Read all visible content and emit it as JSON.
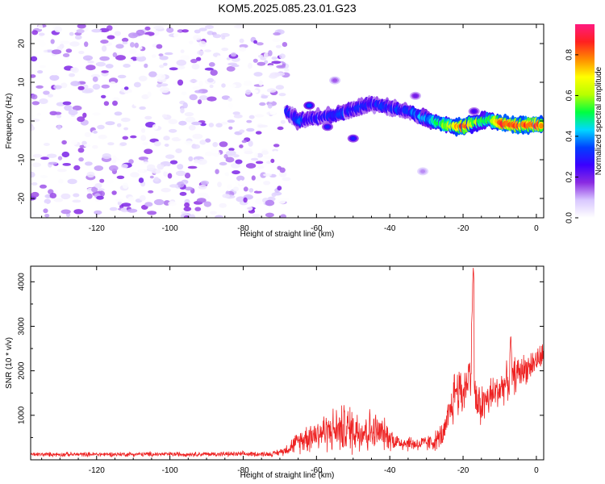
{
  "title": "KOM5.2025.085.23.01.G23",
  "chart_data": [
    {
      "type": "heatmap",
      "xlabel": "Height of straight line (km)",
      "ylabel": "Frequency (Hz)",
      "xlim": [
        -138,
        2
      ],
      "ylim": [
        -25,
        25
      ],
      "xticks": [
        -120,
        -100,
        -80,
        -60,
        -40,
        -20,
        0
      ],
      "yticks": [
        -20,
        -10,
        0,
        10,
        20
      ],
      "colorbar": {
        "label": "Normalized spectral amplitude",
        "range": [
          0,
          0.95
        ],
        "ticks": [
          0.0,
          0.2,
          0.4,
          0.6,
          0.8
        ],
        "colormap": [
          "#ffffff",
          "#d9c8ff",
          "#8a2be2",
          "#3b00ff",
          "#0040ff",
          "#00d8ff",
          "#00ff40",
          "#b8ff00",
          "#ffff00",
          "#ff8c00",
          "#ff2020",
          "#ff1a80"
        ]
      },
      "noise_region": {
        "x_range": [
          -138,
          -68
        ],
        "freq_range": [
          -25,
          25
        ],
        "amplitude_range": [
          0.0,
          0.2
        ]
      },
      "signal_ridge": {
        "freq_halfwidth_hz": 1.3,
        "points": [
          {
            "x": -68,
            "f": 2.5,
            "a": 0.25
          },
          {
            "x": -65,
            "f": 0.0,
            "a": 0.32
          },
          {
            "x": -60,
            "f": 0.8,
            "a": 0.3
          },
          {
            "x": -55,
            "f": 1.5,
            "a": 0.28
          },
          {
            "x": -50,
            "f": 3.0,
            "a": 0.32
          },
          {
            "x": -45,
            "f": 4.5,
            "a": 0.28
          },
          {
            "x": -40,
            "f": 3.5,
            "a": 0.3
          },
          {
            "x": -35,
            "f": 2.5,
            "a": 0.32
          },
          {
            "x": -30,
            "f": 0.5,
            "a": 0.4
          },
          {
            "x": -25,
            "f": -1.0,
            "a": 0.55
          },
          {
            "x": -20,
            "f": -1.5,
            "a": 0.85
          },
          {
            "x": -17,
            "f": -0.5,
            "a": 0.6
          },
          {
            "x": -13,
            "f": 0.5,
            "a": 0.5
          },
          {
            "x": -10,
            "f": -0.5,
            "a": 0.85
          },
          {
            "x": -5,
            "f": -1.0,
            "a": 0.8
          },
          {
            "x": 0,
            "f": -1.0,
            "a": 0.85
          },
          {
            "x": 2,
            "f": -1.0,
            "a": 0.8
          }
        ]
      },
      "isolated_patches": [
        {
          "x": -62,
          "f": 4.0,
          "a": 0.35
        },
        {
          "x": -57,
          "f": -1.5,
          "a": 0.3
        },
        {
          "x": -50,
          "f": -4.5,
          "a": 0.3
        },
        {
          "x": -55,
          "f": 10.5,
          "a": 0.15
        },
        {
          "x": -33,
          "f": 6.5,
          "a": 0.2
        },
        {
          "x": -31,
          "f": -13.0,
          "a": 0.12
        },
        {
          "x": -17,
          "f": 2.5,
          "a": 0.25
        }
      ]
    },
    {
      "type": "line",
      "xlabel": "Height of straight line (km)",
      "ylabel": "SNR (10 * v/v)",
      "xlim": [
        -138,
        2
      ],
      "ylim": [
        0,
        4350
      ],
      "xticks": [
        -120,
        -100,
        -80,
        -60,
        -40,
        -20,
        0
      ],
      "yticks": [
        1000,
        2000,
        3000,
        4000
      ],
      "series": [
        {
          "color": "#ee2222",
          "envelope": [
            {
              "x": -138,
              "mean": 120,
              "amp": 60
            },
            {
              "x": -72,
              "mean": 130,
              "amp": 70
            },
            {
              "x": -69,
              "mean": 200,
              "amp": 120
            },
            {
              "x": -66,
              "mean": 350,
              "amp": 250
            },
            {
              "x": -62,
              "mean": 550,
              "amp": 450
            },
            {
              "x": -57,
              "mean": 650,
              "amp": 550
            },
            {
              "x": -52,
              "mean": 700,
              "amp": 700
            },
            {
              "x": -46,
              "mean": 650,
              "amp": 650
            },
            {
              "x": -42,
              "mean": 600,
              "amp": 450
            },
            {
              "x": -38,
              "mean": 400,
              "amp": 250
            },
            {
              "x": -32,
              "mean": 350,
              "amp": 200
            },
            {
              "x": -28,
              "mean": 400,
              "amp": 250
            },
            {
              "x": -25,
              "mean": 600,
              "amp": 400
            },
            {
              "x": -22,
              "mean": 1600,
              "amp": 800
            },
            {
              "x": -20,
              "mean": 1500,
              "amp": 700
            },
            {
              "x": -18,
              "mean": 2000,
              "amp": 600
            },
            {
              "x": -16,
              "mean": 1200,
              "amp": 600
            },
            {
              "x": -14,
              "mean": 1300,
              "amp": 600
            },
            {
              "x": -10,
              "mean": 1600,
              "amp": 500
            },
            {
              "x": -6,
              "mean": 1900,
              "amp": 500
            },
            {
              "x": -2,
              "mean": 2100,
              "amp": 400
            },
            {
              "x": 2,
              "mean": 2350,
              "amp": 350
            }
          ],
          "spikes": [
            {
              "x": -17.2,
              "y": 4350
            },
            {
              "x": -17.5,
              "y": 3400
            },
            {
              "x": -7,
              "y": 2850
            }
          ]
        }
      ]
    }
  ]
}
